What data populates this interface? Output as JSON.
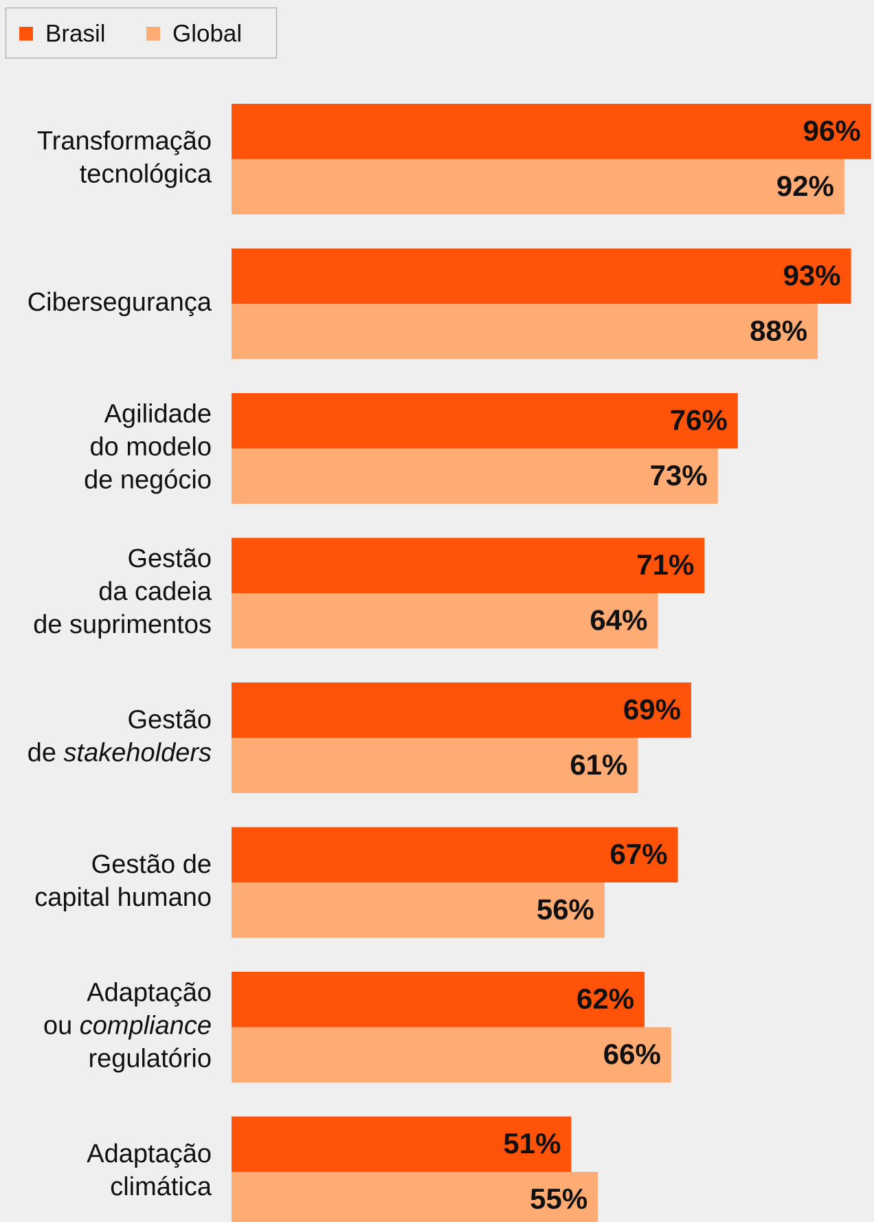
{
  "chart_data": {
    "type": "hbar",
    "categories": [
      [
        "Transformação",
        "tecnológica"
      ],
      [
        "Cibersegurança"
      ],
      [
        "Agilidade",
        "do modelo",
        "de negócio"
      ],
      [
        "Gestão",
        "da cadeia",
        "de suprimentos"
      ],
      [
        "Gestão",
        [
          {
            "text": "de "
          },
          {
            "text": "stakeholders",
            "italic": true
          }
        ]
      ],
      [
        "Gestão de",
        "capital humano"
      ],
      [
        "Adaptação",
        [
          {
            "text": "ou "
          },
          {
            "text": "compliance",
            "italic": true
          }
        ],
        "regulatório"
      ],
      [
        "Adaptação",
        "climática"
      ]
    ],
    "series": [
      {
        "name": "Brasil",
        "color": "#fe5309",
        "values": [
          96,
          93,
          76,
          71,
          69,
          67,
          62,
          51
        ],
        "value_labels": [
          "96%",
          "93%",
          "76%",
          "71%",
          "69%",
          "67%",
          "62%",
          "51%"
        ]
      },
      {
        "name": "Global",
        "color": "#ffab74",
        "values": [
          92,
          88,
          73,
          64,
          61,
          56,
          66,
          55
        ],
        "value_labels": [
          "92%",
          "88%",
          "73%",
          "64%",
          "61%",
          "56%",
          "66%",
          "55%"
        ]
      }
    ],
    "xlim": [
      0,
      100
    ],
    "legend": "top-left"
  }
}
